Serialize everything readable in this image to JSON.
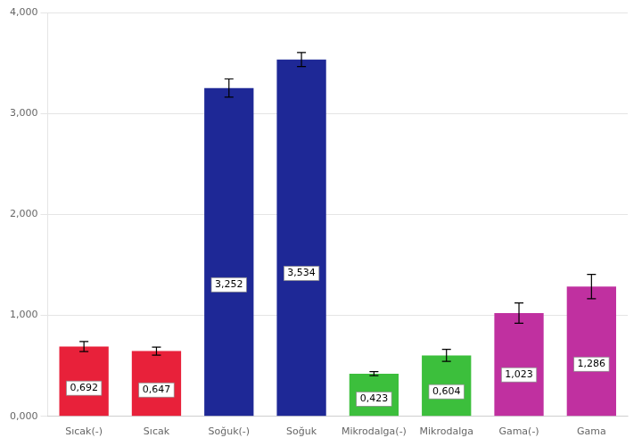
{
  "chart_data": {
    "type": "bar",
    "categories": [
      "Sıcak(-)",
      "Sıcak",
      "Soğuk(-)",
      "Soğuk",
      "Mikrodalga(-)",
      "Mikrodalga",
      "Gama(-)",
      "Gama"
    ],
    "values": [
      692,
      647,
      3252,
      3534,
      423,
      604,
      1023,
      1286
    ],
    "errors": [
      50,
      40,
      90,
      70,
      20,
      60,
      100,
      120
    ],
    "value_labels": [
      "0,692",
      "0,647",
      "3,252",
      "3,534",
      "0,423",
      "0,604",
      "1,023",
      "1,286"
    ],
    "data_labels": true,
    "colors": [
      "#e8213a",
      "#e8213a",
      "#1e2896",
      "#1e2896",
      "#3cbf3c",
      "#3cbf3c",
      "#c030a0",
      "#c030a0"
    ],
    "ylim": [
      0,
      4000
    ],
    "yticks": [
      {
        "value": 0,
        "label": "0,000"
      },
      {
        "value": 1000,
        "label": "1,000"
      },
      {
        "value": 2000,
        "label": "2,000"
      },
      {
        "value": 3000,
        "label": "3,000"
      },
      {
        "value": 4000,
        "label": "4,000"
      }
    ],
    "grid": true
  }
}
